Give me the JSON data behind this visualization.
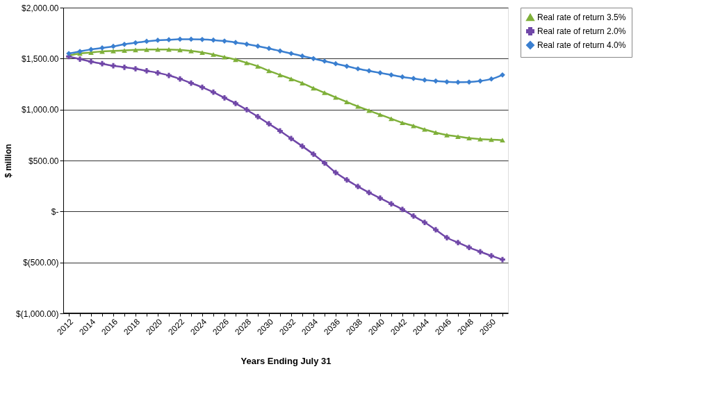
{
  "chart_data": {
    "type": "line",
    "xlabel": "Years Ending July 31",
    "ylabel": "$ million",
    "categories": [
      "2012",
      null,
      "2014",
      null,
      "2016",
      null,
      "2018",
      null,
      "2020",
      null,
      "2022",
      null,
      "2024",
      null,
      "2026",
      null,
      "2028",
      null,
      "2030",
      null,
      "2032",
      null,
      "2034",
      null,
      "2036",
      null,
      "2038",
      null,
      "2040",
      null,
      "2042",
      null,
      "2044",
      null,
      "2046",
      null,
      "2048",
      null,
      "2050",
      null
    ],
    "ylim": [
      -1000,
      2000
    ],
    "yticks": [
      {
        "value": -1000,
        "label": "$(1,000.00)"
      },
      {
        "value": -500,
        "label": "$(500.00)"
      },
      {
        "value": 0,
        "label": "$-"
      },
      {
        "value": 500,
        "label": "$500.00"
      },
      {
        "value": 1000,
        "label": "$1,000.00"
      },
      {
        "value": 1500,
        "label": "$1,500.00"
      },
      {
        "value": 2000,
        "label": "$2,000.00"
      }
    ],
    "grid": "y",
    "legend": "right",
    "series": [
      {
        "name": "Real rate of return 3.5%",
        "color": "#7fb03a",
        "marker": "triangle",
        "values": [
          1530,
          1550,
          1560,
          1570,
          1575,
          1580,
          1585,
          1588,
          1590,
          1590,
          1585,
          1575,
          1560,
          1540,
          1515,
          1490,
          1458,
          1425,
          1380,
          1340,
          1300,
          1260,
          1210,
          1165,
          1120,
          1075,
          1030,
          990,
          950,
          910,
          870,
          840,
          805,
          775,
          750,
          735,
          720,
          710,
          705,
          700
        ]
      },
      {
        "name": "Real rate of return 2.0%",
        "color": "#7047a8",
        "marker": "cross",
        "values": [
          1520,
          1495,
          1470,
          1450,
          1430,
          1415,
          1400,
          1380,
          1360,
          1335,
          1300,
          1260,
          1219,
          1170,
          1115,
          1060,
          998,
          930,
          860,
          790,
          715,
          640,
          562,
          475,
          382,
          310,
          245,
          185,
          131,
          75,
          20,
          -45,
          -107,
          -180,
          -257,
          -305,
          -353,
          -395,
          -435,
          -472
        ]
      },
      {
        "name": "Real rate of return 4.0%",
        "color": "#3a7fd0",
        "marker": "diamond",
        "values": [
          1550,
          1570,
          1590,
          1605,
          1620,
          1640,
          1655,
          1670,
          1680,
          1685,
          1690,
          1690,
          1688,
          1682,
          1672,
          1658,
          1642,
          1622,
          1600,
          1575,
          1550,
          1525,
          1500,
          1475,
          1450,
          1425,
          1400,
          1380,
          1360,
          1340,
          1320,
          1305,
          1290,
          1280,
          1272,
          1268,
          1270,
          1280,
          1300,
          1340
        ]
      }
    ]
  }
}
